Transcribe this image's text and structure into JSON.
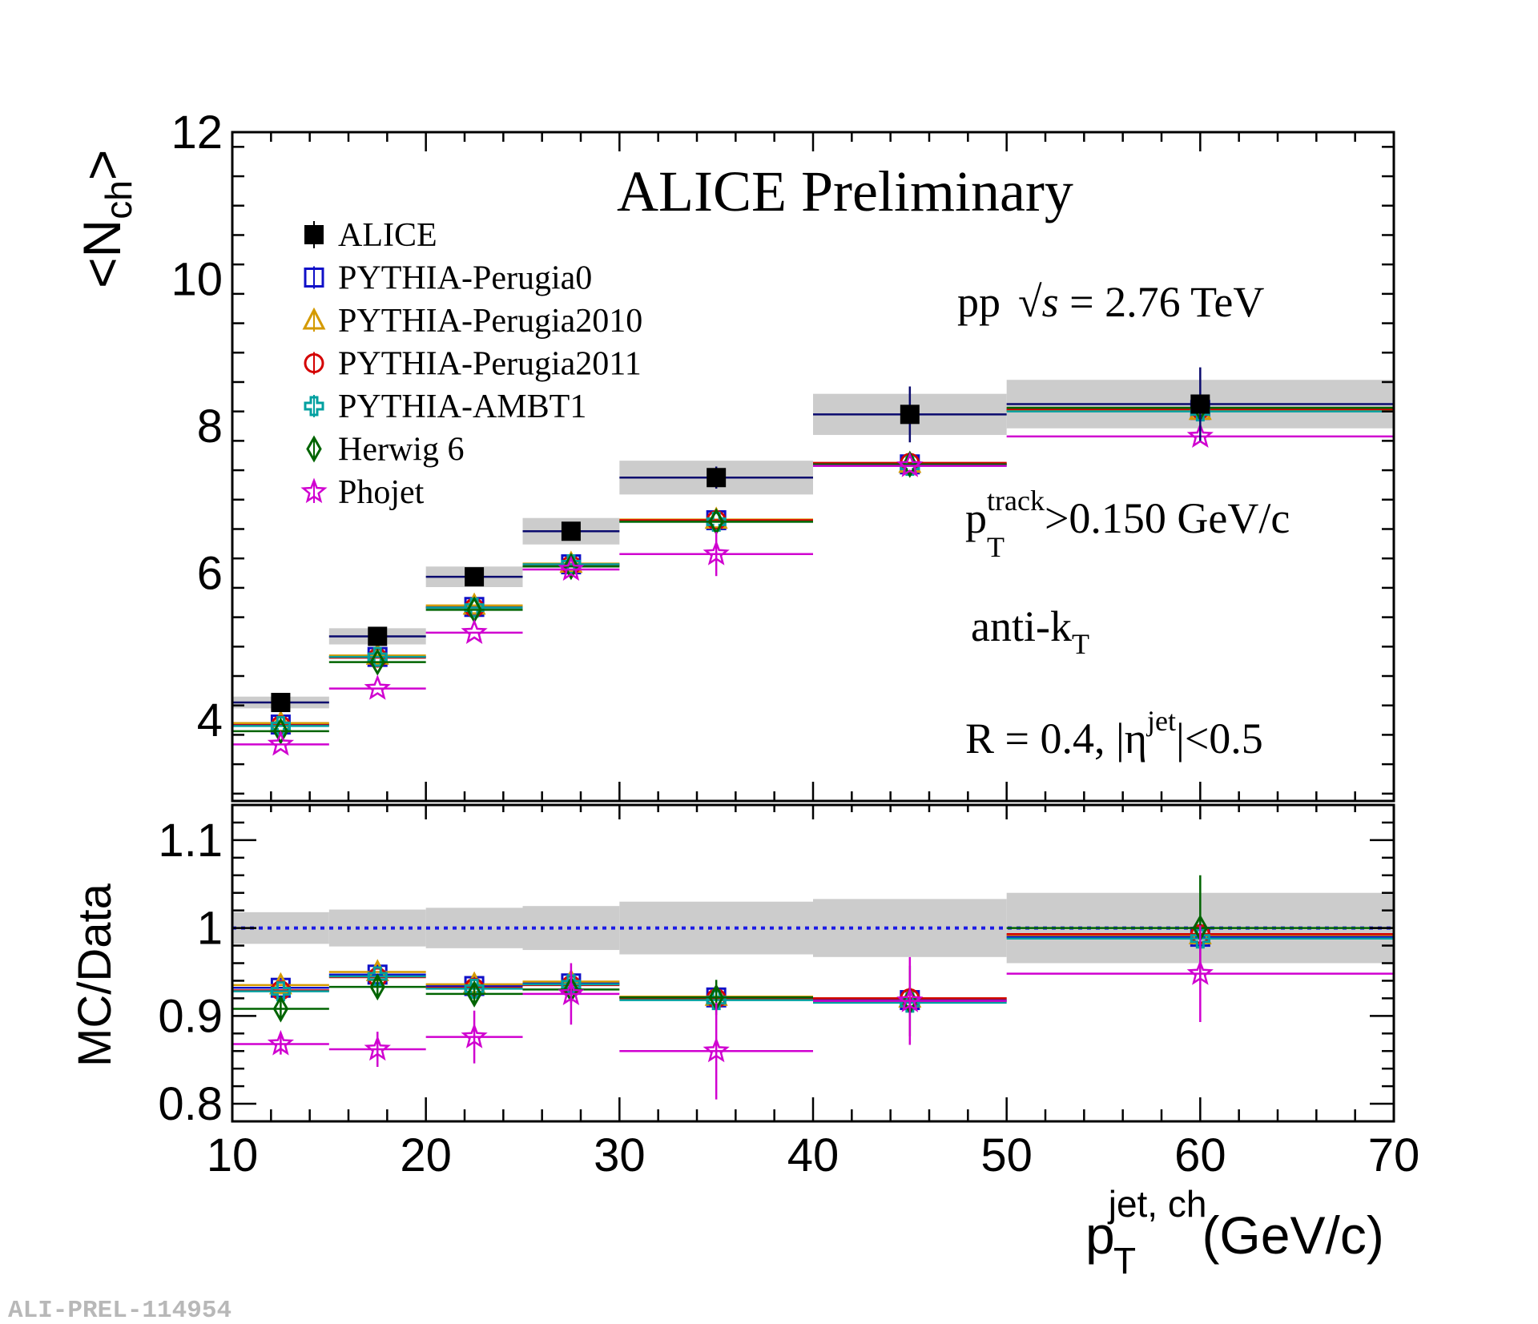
{
  "footer": "ALI-PREL-114954",
  "annotations": {
    "title": "ALICE Preliminary",
    "energy_pre": "pp",
    "energy_root": "√",
    "energy_s": "s",
    "energy_post": " = 2.76 TeV",
    "track_p": "p",
    "track_sub": "T",
    "track_sup": "track",
    "track_rest": ">0.150 GeV/c",
    "algo_main": "anti-k",
    "algo_sub": "T",
    "radius_main": "R = 0.4, |η",
    "radius_sup": "jet",
    "radius_rest": "|<0.5"
  },
  "colors": {
    "ALICE": "#000000",
    "PYTHIA-Perugia0": "#1010c8",
    "PYTHIA-Perugia2010": "#d49a00",
    "PYTHIA-Perugia2011": "#d40000",
    "PYTHIA-AMBT1": "#00a0a0",
    "Herwig 6": "#006400",
    "Phojet": "#d000d0",
    "sys_band": "#cccccc",
    "reference_line": "#1a1ae6"
  },
  "chart_data": [
    {
      "type": "scatter",
      "panel": "top",
      "ylabel": "<N",
      "ylabel_sub": "ch",
      "ylabel_end": ">",
      "xlim": [
        10,
        70
      ],
      "ylim": [
        2.9,
        12
      ],
      "x_ticks": [
        "10",
        "20",
        "30",
        "40",
        "50",
        "60",
        "70"
      ],
      "y_ticks": [
        "4",
        "6",
        "8",
        "10",
        "12"
      ],
      "grid": false,
      "legend_position": "top-left",
      "bins": [
        [
          10,
          15
        ],
        [
          15,
          20
        ],
        [
          20,
          25
        ],
        [
          25,
          30
        ],
        [
          30,
          40
        ],
        [
          40,
          50
        ],
        [
          50,
          70
        ]
      ],
      "series": [
        {
          "name": "ALICE",
          "marker": "filled-square",
          "values": [
            4.24,
            5.14,
            5.95,
            6.57,
            7.3,
            8.16,
            8.3
          ],
          "stat_err": [
            0.05,
            0.06,
            0.06,
            0.08,
            0.15,
            0.38,
            0.5
          ],
          "sys_err": [
            0.08,
            0.11,
            0.14,
            0.18,
            0.23,
            0.28,
            0.33
          ]
        },
        {
          "name": "PYTHIA-Perugia0",
          "marker": "open-square",
          "values": [
            3.94,
            4.86,
            5.54,
            6.12,
            6.72,
            7.48,
            8.22
          ]
        },
        {
          "name": "PYTHIA-Perugia2010",
          "marker": "open-triangle",
          "values": [
            3.96,
            4.88,
            5.56,
            6.13,
            6.73,
            7.49,
            8.21
          ]
        },
        {
          "name": "PYTHIA-Perugia2011",
          "marker": "open-circle",
          "values": [
            3.93,
            4.85,
            5.53,
            6.11,
            6.72,
            7.5,
            8.23
          ]
        },
        {
          "name": "PYTHIA-AMBT1",
          "marker": "open-cross",
          "values": [
            3.92,
            4.86,
            5.53,
            6.12,
            6.7,
            7.46,
            8.2
          ]
        },
        {
          "name": "Herwig 6",
          "marker": "open-diamond",
          "values": [
            3.85,
            4.79,
            5.5,
            6.09,
            6.7,
            7.48,
            8.25
          ]
        },
        {
          "name": "Phojet",
          "marker": "open-star",
          "values": [
            3.67,
            4.43,
            5.19,
            6.05,
            6.26,
            7.46,
            7.86
          ]
        }
      ]
    },
    {
      "type": "scatter",
      "panel": "ratio",
      "xlabel": "p",
      "xlabel_sub": "T",
      "xlabel_sup": "jet, ch",
      "xlabel_rest": "(GeV/c)",
      "ylabel": "MC/Data",
      "xlim": [
        10,
        70
      ],
      "ylim": [
        0.78,
        1.14
      ],
      "y_ticks": [
        "0.8",
        "0.9",
        "1",
        "1.1"
      ],
      "reference": 1.0,
      "band_halfwidth": [
        0.018,
        0.021,
        0.023,
        0.025,
        0.03,
        0.033,
        0.04
      ],
      "series": [
        {
          "name": "PYTHIA-Perugia0",
          "values": [
            0.932,
            0.947,
            0.934,
            0.937,
            0.921,
            0.918,
            0.99
          ]
        },
        {
          "name": "PYTHIA-Perugia2010",
          "values": [
            0.935,
            0.95,
            0.936,
            0.939,
            0.922,
            0.92,
            0.992
          ]
        },
        {
          "name": "PYTHIA-Perugia2011",
          "values": [
            0.929,
            0.944,
            0.932,
            0.935,
            0.92,
            0.92,
            0.993
          ]
        },
        {
          "name": "PYTHIA-AMBT1",
          "values": [
            0.928,
            0.945,
            0.931,
            0.936,
            0.918,
            0.915,
            0.988
          ]
        },
        {
          "name": "Herwig 6",
          "values": [
            0.908,
            0.933,
            0.925,
            0.93,
            0.921,
            0.917,
            1.0
          ]
        },
        {
          "name": "Phojet",
          "values": [
            0.868,
            0.862,
            0.876,
            0.925,
            0.86,
            0.917,
            0.948
          ]
        }
      ],
      "phojet_err": [
        0.012,
        0.02,
        0.03,
        0.035,
        0.055,
        0.05,
        0.055
      ],
      "herwig_err": [
        0.01,
        0.01,
        0.012,
        0.015,
        0.02,
        0.04,
        0.06
      ]
    }
  ]
}
